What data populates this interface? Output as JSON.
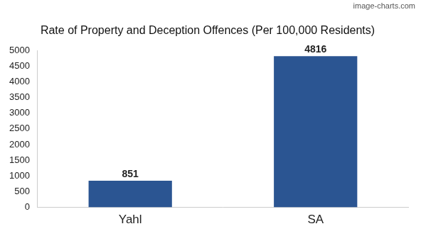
{
  "chart_data": {
    "type": "bar",
    "title": "Rate of Property and Deception Offences (Per 100,000 Residents)",
    "annotations": [
      "image-charts.com"
    ],
    "categories": [
      "Yahl",
      "SA"
    ],
    "values": [
      851,
      4816
    ],
    "color": "#2b5592",
    "ylim": [
      0,
      5000
    ],
    "yticks": [
      0,
      500,
      1000,
      1500,
      2000,
      2500,
      3000,
      3500,
      4000,
      4500,
      5000
    ],
    "grid": false,
    "data_labels": true
  }
}
